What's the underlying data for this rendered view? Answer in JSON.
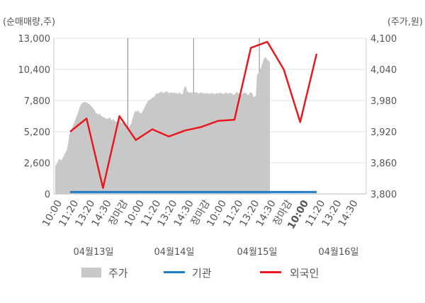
{
  "chart_data": {
    "type": "line",
    "unit_left": "(순매매량,주)",
    "unit_right": "(주가,원)",
    "left_axis": {
      "min": 0,
      "max": 13000,
      "ticks": [
        "13,000",
        "10,400",
        "7,800",
        "5,200",
        "2,600",
        "0"
      ],
      "tick_values": [
        13000,
        10400,
        7800,
        5200,
        2600,
        0
      ]
    },
    "right_axis": {
      "min": 3800,
      "max": 4100,
      "ticks": [
        "4,100",
        "4,040",
        "3,980",
        "3,920",
        "3,860",
        "3,800"
      ],
      "tick_values": [
        4100,
        4040,
        3980,
        3920,
        3860,
        3800
      ]
    },
    "x_ticks": [
      "10:00",
      "11:20",
      "13:20",
      "14:30",
      "장마감",
      "10:00",
      "11:20",
      "13:20",
      "14:30",
      "장마감",
      "10:00",
      "11:20",
      "13:20",
      "14:30",
      "장마감",
      "10:00",
      "11:20",
      "13:20",
      "14:30"
    ],
    "day_labels": [
      "04월13일",
      "04월14일",
      "04월15일",
      "04월16일"
    ],
    "legend": [
      "주가",
      "기관",
      "외국인"
    ],
    "colors": {
      "price": "#c8c8c8",
      "institution": "#1e7bc6",
      "foreign": "#e8191f",
      "closing_label": "#e8191f",
      "grid": "#e6e6e6"
    },
    "series": [
      {
        "name": "주가",
        "axis": "right",
        "values": [
          3855,
          3856,
          3860,
          3866,
          3868,
          3866,
          3865,
          3870,
          3872,
          3878,
          3881,
          3886,
          3898,
          3912,
          3920,
          3925,
          3928,
          3935,
          3938,
          3945,
          3950,
          3955,
          3962,
          3968,
          3972,
          3975,
          3976,
          3977,
          3978,
          3976,
          3975,
          3974,
          3973,
          3970,
          3968,
          3966,
          3963,
          3960,
          3955,
          3956,
          3952,
          3955,
          3953,
          3950,
          3949,
          3948,
          3947,
          3946,
          3944,
          3946,
          3945,
          3948,
          3944,
          3941,
          3945,
          3942,
          3940,
          3938,
          3940,
          3942,
          3944,
          3940,
          3936,
          3938,
          3935,
          3934,
          3930,
          3932,
          3928,
          3930,
          3933,
          3936,
          3946,
          3952,
          3958,
          3960,
          3958,
          3962,
          3958,
          3956,
          3955,
          3958,
          3962,
          3966,
          3970,
          3974,
          3978,
          3980,
          3982,
          3982,
          3985,
          3986,
          3986,
          3990,
          3993,
          3994,
          3993,
          3996,
          3995,
          3998,
          3995,
          3994,
          3996,
          3997,
          3998,
          3996,
          3994,
          3995,
          3996,
          3995,
          3994,
          3996,
          3994,
          3995,
          3993,
          3994,
          3996,
          3993,
          3992,
          3994,
          4004,
          4008,
          4005,
          3998,
          3996,
          3995,
          3996,
          3995,
          3996,
          3994,
          3996,
          3995,
          3996,
          3994,
          3993,
          3995,
          3996,
          3994,
          3995,
          3993,
          3994,
          3995,
          3993,
          3995,
          3992,
          3994,
          3995,
          3993,
          3994,
          3992,
          3994,
          3995,
          3993,
          3994,
          3996,
          3993,
          3994,
          3992,
          3994,
          3996,
          3994,
          3993,
          3995,
          3994,
          3995,
          3993,
          3990,
          3992,
          3994,
          3996,
          3996,
          3993,
          3994,
          3990,
          3992,
          3994,
          3996,
          3994,
          3995,
          3992,
          3990,
          3994,
          3996,
          3995,
          3992,
          3986,
          3988,
          3990,
          4030,
          4032,
          4034,
          4040,
          4045,
          4052,
          4058,
          4062,
          4064,
          4060,
          4058,
          4056,
          4054
        ]
      },
      {
        "name": "기관",
        "axis": "left",
        "values": [
          100,
          100,
          100,
          100,
          100,
          100,
          100,
          100,
          100,
          100,
          100,
          100,
          100,
          100,
          100,
          100,
          100,
          100,
          100,
          100,
          100,
          100
        ]
      },
      {
        "name": "외국인",
        "axis": "left",
        "values": [
          5200,
          6300,
          500,
          6500,
          4500,
          5400,
          4800,
          5300,
          5600,
          6100,
          6200,
          12200,
          12700,
          10400,
          6000,
          11700
        ]
      }
    ]
  }
}
